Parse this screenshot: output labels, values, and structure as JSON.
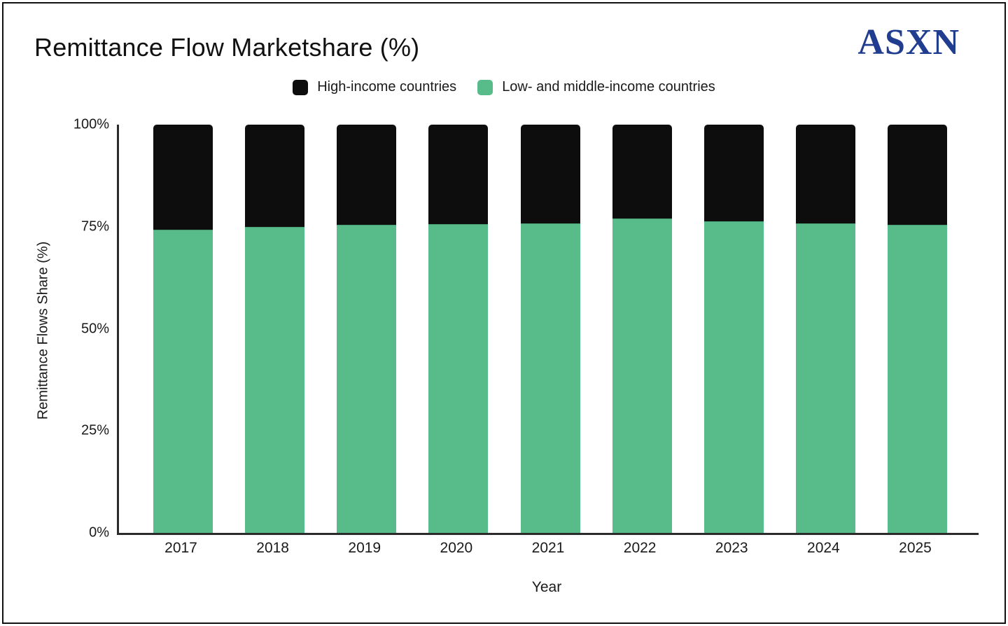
{
  "header": {
    "title": "Remittance Flow Marketshare (%)",
    "logo": "ASXN",
    "logo_color": "#203d8f"
  },
  "legend": {
    "0": {
      "label": "High-income countries",
      "color": "#0d0d0d"
    },
    "1": {
      "label": "Low- and middle-income countries",
      "color": "#57bb8a"
    }
  },
  "chart_data": {
    "type": "bar",
    "stacked": true,
    "title": "Remittance Flow Marketshare (%)",
    "categories": [
      "2017",
      "2018",
      "2019",
      "2020",
      "2021",
      "2022",
      "2023",
      "2024",
      "2025"
    ],
    "series": [
      {
        "name": "Low- and middle-income countries",
        "color": "#57bb8a",
        "values": [
          74.2,
          75.0,
          75.5,
          75.7,
          75.8,
          77.1,
          76.4,
          75.8,
          75.5
        ]
      },
      {
        "name": "High-income countries",
        "color": "#0d0d0d",
        "values": [
          25.8,
          25.0,
          24.5,
          24.3,
          24.2,
          22.9,
          23.6,
          24.2,
          24.5
        ]
      }
    ],
    "xlabel": "Year",
    "ylabel": "Remittance Flows Share (%)",
    "ylim": [
      0,
      100
    ],
    "yticks": [
      "0%",
      "25%",
      "50%",
      "75%",
      "100%"
    ],
    "grid": false,
    "legend_position": "top"
  }
}
